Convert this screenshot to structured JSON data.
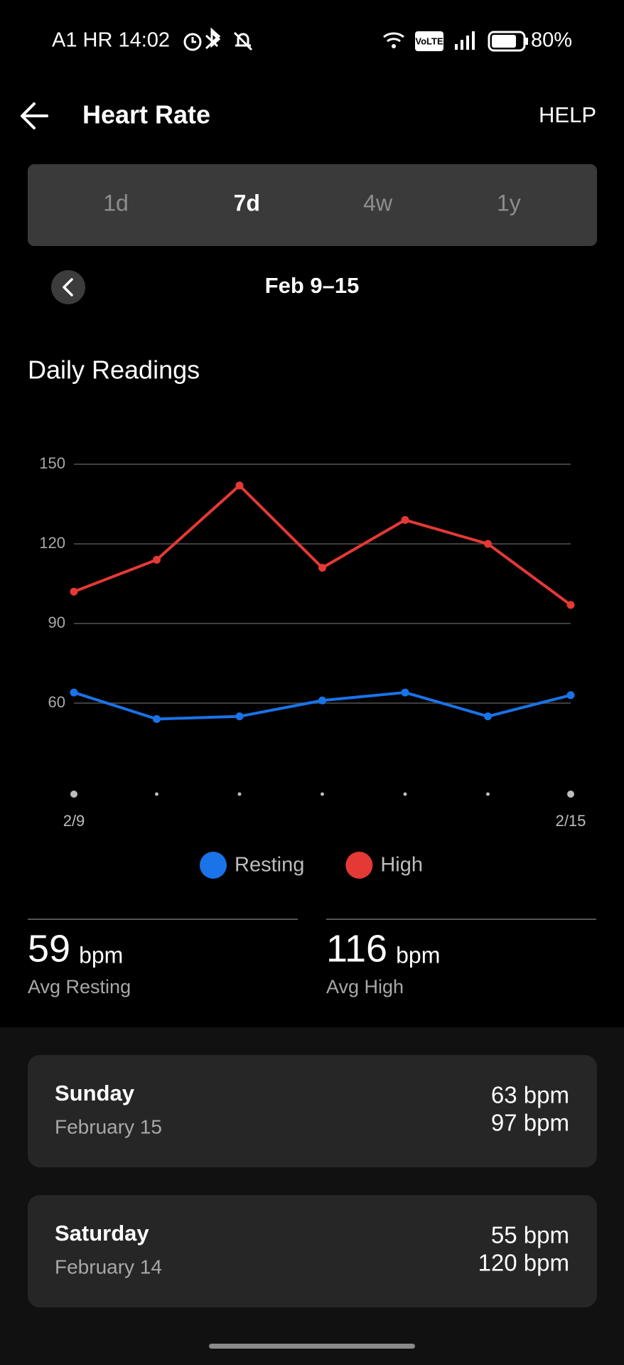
{
  "status_bar": {
    "left": "A1 HR 14:02",
    "network": "VoLTE",
    "battery": "80%"
  },
  "header": {
    "title": "Heart Rate",
    "help": "HELP"
  },
  "tabs": [
    "1d",
    "7d",
    "4w",
    "1y"
  ],
  "selected_tab": 1,
  "date_range": "Feb 9–15",
  "section_title": "Daily Readings",
  "chart_data": {
    "type": "line",
    "categories": [
      "2/9",
      null,
      null,
      null,
      null,
      null,
      "2/15"
    ],
    "series": [
      {
        "name": "Resting",
        "color": "#1a73e8",
        "values": [
          64,
          54,
          55,
          61,
          64,
          55,
          63
        ]
      },
      {
        "name": "High",
        "color": "#e53935",
        "values": [
          102,
          114,
          142,
          111,
          129,
          120,
          97
        ]
      }
    ],
    "ylim": [
      30,
      150
    ],
    "yticks": [
      60,
      90,
      120,
      150
    ],
    "grid": true
  },
  "summary": [
    {
      "value": 59,
      "unit": "bpm",
      "label": "Avg Resting"
    },
    {
      "value": 116,
      "unit": "bpm",
      "label": "Avg High"
    }
  ],
  "days": [
    {
      "day": "Sunday",
      "date": "February 15",
      "resting": "63 bpm",
      "high": "97 bpm"
    },
    {
      "day": "Saturday",
      "date": "February 14",
      "resting": "55 bpm",
      "high": "120 bpm"
    }
  ]
}
